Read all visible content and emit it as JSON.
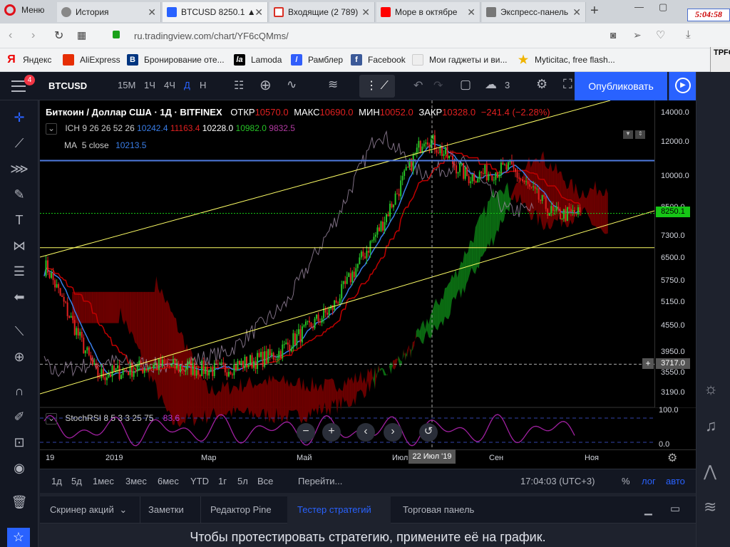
{
  "browser": {
    "menu_label": "Меню",
    "tabs": [
      {
        "label": "История"
      },
      {
        "label": "BTCUSD 8250.1 ▲"
      },
      {
        "label": "Входящие (2 789)"
      },
      {
        "label": "Море в октябре"
      },
      {
        "label": "Экспресс-панель"
      }
    ],
    "clock": "5:04:58",
    "url": "ru.tradingview.com/chart/YF6cQMms/",
    "bookmarks": [
      "Яндекс",
      "AliExpress",
      "Бронирование оте...",
      "Lamoda",
      "Рамблер",
      "Facebook",
      "Мои гаджеты и ви...",
      "Myticitac, free flash..."
    ]
  },
  "toolbar": {
    "menu_badge": "4",
    "symbol": "BTCUSD",
    "intervals": [
      "15М",
      "1Ч",
      "4Ч",
      "Д",
      "Н"
    ],
    "active_interval": "Д",
    "layout_count": "3",
    "publish_label": "Опубликовать"
  },
  "legend": {
    "title": "Биткоин / Доллар США · 1Д · BITFINEX",
    "open_label": "ОТКР",
    "open": "10570.0",
    "high_label": "МАКС",
    "high": "10690.0",
    "low_label": "МИН",
    "low": "10052.0",
    "close_label": "ЗАКР",
    "close": "10328.0",
    "change": "−241.4 (−2.28%)",
    "ich_label": "ICH",
    "ich_params": "9 26 26 52 26",
    "ich_v1": "10242.4",
    "ich_v2": "11163.4",
    "ich_v3": "10228.0",
    "ich_v4": "10982.0",
    "ich_v5": "9832.5",
    "ma_label": "MA",
    "ma_params": "5 close",
    "ma_value": "10213.5",
    "stoch_label": "StochRSI",
    "stoch_params": "8 5 3 3 25 75",
    "stoch_value": "83.6"
  },
  "price_axis": {
    "ticks": [
      "14000.0",
      "12000.0",
      "10000.0",
      "8500.0",
      "7300.0",
      "6500.0",
      "5750.0",
      "5150.0",
      "4550.0",
      "3950.0",
      "3550.0",
      "3190.0"
    ],
    "last_price": "8250.1",
    "cursor_price": "3717.0",
    "stoch_ticks": [
      "100.0",
      "0.0"
    ]
  },
  "time_axis": {
    "ticks": [
      "19",
      "2019",
      "Мар",
      "Май",
      "Июл",
      "Сен",
      "Ноя"
    ],
    "cursor_date": "22 Июл '19"
  },
  "ranges": {
    "items": [
      "1д",
      "5д",
      "1мес",
      "3мес",
      "6мес",
      "YTD",
      "1г",
      "5л",
      "Все"
    ],
    "goto_label": "Перейти...",
    "time": "17:04:03 (UTC+3)",
    "percent": "%",
    "log": "лог",
    "auto": "авто"
  },
  "bottom": {
    "tabs": [
      "Скринер акций",
      "Заметки",
      "Редактор Pine",
      "Тестер стратегий",
      "Торговая панель"
    ],
    "active_tab": "Тестер стратегий",
    "message": "Чтобы протестировать стратегию, примените её на график."
  },
  "colors": {
    "bull": "#26c226",
    "bear": "#e02020",
    "kijun": "#c00000",
    "tenkan": "#3a7ee8",
    "lagging": "#9c8aa3",
    "cloud_bull": "#0b6b12",
    "cloud_bear": "#6b0000",
    "channel": "#ffff66",
    "hline": "#4f7be0",
    "accent": "#2962ff"
  },
  "chart_data": {
    "type": "candlestick",
    "symbol": "BTCUSD",
    "title": "Биткоин / Доллар США · 1Д · BITFINEX",
    "scale": "log",
    "ylim": [
      3000,
      15000
    ],
    "x": [
      "2018-12",
      "2019-01",
      "2019-02",
      "2019-03",
      "2019-04",
      "2019-05",
      "2019-06",
      "2019-07",
      "2019-08",
      "2019-09",
      "2019-10"
    ],
    "series": [
      {
        "name": "close",
        "values": [
          3700,
          3550,
          3800,
          4000,
          5200,
          8300,
          10800,
          9600,
          10200,
          8300,
          8250
        ]
      },
      {
        "name": "MA 5 close",
        "values": [
          3750,
          3580,
          3790,
          4020,
          5150,
          8200,
          10700,
          9700,
          10100,
          8350,
          8213
        ]
      }
    ],
    "horizontal_lines": [
      10900,
      6880,
      3717
    ],
    "last_price": 8250.1,
    "stoch_rsi_last": 83.6
  }
}
